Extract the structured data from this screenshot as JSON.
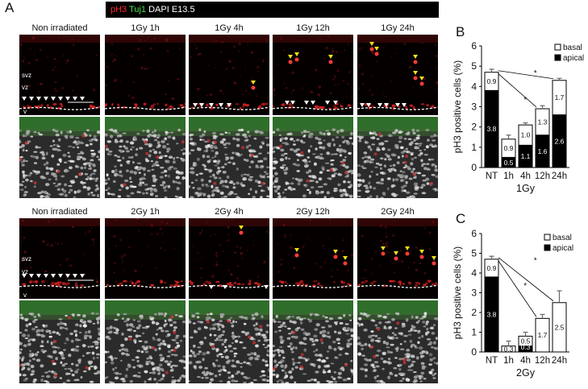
{
  "panel_labels": {
    "a": "A",
    "b": "B",
    "c": "C"
  },
  "stain_legend": {
    "ph3": "pH3",
    "tuj1": "Tuj1",
    "dapi": "DAPI E13.5"
  },
  "top_row_labels": [
    "Non irradiated",
    "1Gy 1h",
    "1Gy 4h",
    "1Gy 12h",
    "1Gy 24h"
  ],
  "bottom_row_labels": [
    "Non irradiated",
    "2Gy 1h",
    "2Gy 4h",
    "2Gy 12h",
    "2Gy 24h"
  ],
  "zone_labels": {
    "svz": "svz",
    "vz": "vz",
    "v": "v"
  },
  "colors": {
    "ph3": "#e02020",
    "tuj1": "#3fbf3f",
    "dapi": "#d8d8d8",
    "arrow_yellow": "#f2e21a",
    "arrow_white": "#ffffff"
  },
  "chart_data": [
    {
      "type": "bar",
      "panel": "B",
      "stacked": true,
      "categories": [
        "NT",
        "1h",
        "4h",
        "12h",
        "24h"
      ],
      "series": [
        {
          "name": "apical",
          "values": [
            3.8,
            0.5,
            1.1,
            1.6,
            2.6
          ],
          "errors": [
            0.1,
            0.35,
            0.15,
            0.15,
            0.3
          ]
        },
        {
          "name": "basal",
          "values": [
            0.9,
            0.9,
            1.0,
            1.3,
            1.7
          ],
          "errors": [
            0.15,
            0.2,
            0.1,
            0.15,
            0.1
          ]
        }
      ],
      "value_labels": {
        "apical": [
          "3.8",
          "0.5",
          "1.1",
          "1.6",
          "2.6"
        ],
        "basal": [
          "0.9",
          "0.9",
          "1.0",
          "1.3",
          "1.7"
        ]
      },
      "xlabel": "1Gy",
      "ylabel": "pH3 positive cells (%)",
      "ylim": [
        0,
        6
      ],
      "yticks": [
        0,
        1,
        2,
        3,
        4,
        5,
        6
      ],
      "legend": [
        "basal",
        "apical"
      ],
      "legend_position": "top-right",
      "significance": "*",
      "grid": false
    },
    {
      "type": "bar",
      "panel": "C",
      "stacked": true,
      "categories": [
        "NT",
        "1h",
        "4h",
        "12h",
        "24h"
      ],
      "series": [
        {
          "name": "apical",
          "values": [
            3.8,
            0.0,
            0.3,
            0.0,
            0.0
          ],
          "errors": [
            0.1,
            0,
            0.1,
            0,
            0
          ]
        },
        {
          "name": "basal",
          "values": [
            0.9,
            0.3,
            0.5,
            1.7,
            2.5
          ],
          "errors": [
            0.15,
            0.25,
            0.2,
            0.2,
            0.6
          ]
        }
      ],
      "value_labels": {
        "apical": [
          "3.8",
          "",
          "0.3",
          "",
          ""
        ],
        "basal": [
          "0.9",
          "0.3",
          "0.5",
          "1.7",
          "2.5"
        ]
      },
      "xlabel": "2Gy",
      "ylabel": "pH3 positive cells (%)",
      "ylim": [
        0,
        6
      ],
      "yticks": [
        0,
        1,
        2,
        3,
        4,
        5,
        6
      ],
      "legend": [
        "basal",
        "apical"
      ],
      "legend_position": "top-right",
      "significance": "*",
      "grid": false
    }
  ]
}
